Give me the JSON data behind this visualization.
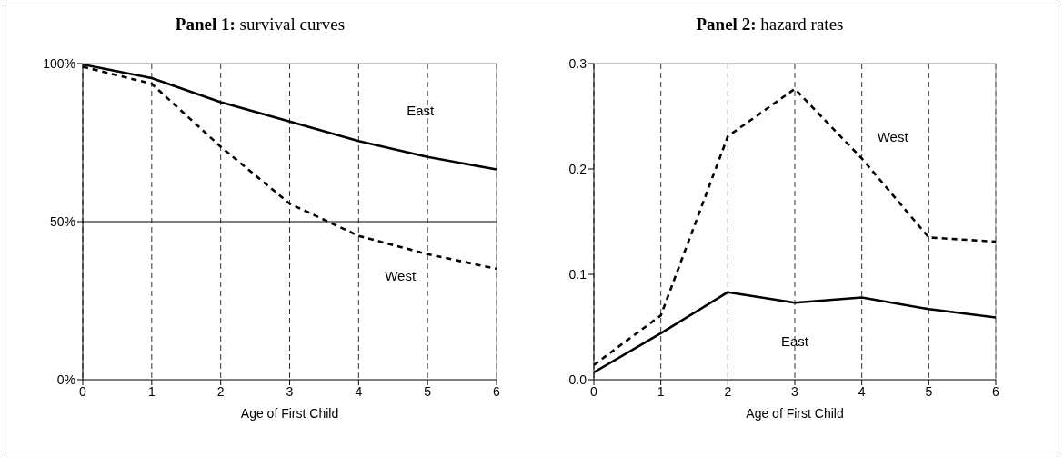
{
  "chart_data": [
    {
      "type": "line",
      "title": "Panel 1: survival curves",
      "xlabel": "Age of First Child",
      "x": [
        0,
        1,
        2,
        3,
        4,
        5,
        6
      ],
      "xlim": [
        0,
        6
      ],
      "xticks": [
        0,
        1,
        2,
        3,
        4,
        5,
        6
      ],
      "ylim": [
        0,
        100
      ],
      "yticks": [
        {
          "value": 0,
          "label": "0%"
        },
        {
          "value": 50,
          "label": "50%"
        },
        {
          "value": 100,
          "label": "100%"
        }
      ],
      "grid": "x",
      "ref_lines": [
        {
          "axis": "y",
          "value": 50,
          "color": "#000000",
          "line_style": "solid"
        }
      ],
      "legend": false,
      "marker": "none",
      "series": [
        {
          "name": "East",
          "color": "#000000",
          "line_style": "solid",
          "values": [
            99.7,
            95.4,
            87.8,
            81.7,
            75.5,
            70.5,
            66.5
          ]
        },
        {
          "name": "West",
          "color": "#000000",
          "line_style": "dashed",
          "values": [
            99,
            93.6,
            73.7,
            55.7,
            45.5,
            39.7,
            35.1
          ]
        }
      ]
    },
    {
      "type": "line",
      "title": "Panel 2: hazard rates",
      "xlabel": "Age of First Child",
      "x": [
        0,
        1,
        2,
        3,
        4,
        5,
        6
      ],
      "xlim": [
        0,
        6
      ],
      "xticks": [
        0,
        1,
        2,
        3,
        4,
        5,
        6
      ],
      "ylim": [
        0,
        0.3
      ],
      "yticks": [
        {
          "value": 0,
          "label": "0.0"
        },
        0.1,
        0.2,
        0.3
      ],
      "grid": "x",
      "legend": false,
      "marker": "none",
      "series": [
        {
          "name": "East",
          "color": "#000000",
          "line_style": "solid",
          "values": [
            0.007,
            0.044,
            0.083,
            0.073,
            0.078,
            0.067,
            0.059
          ]
        },
        {
          "name": "West",
          "color": "#000000",
          "line_style": "dashed",
          "values": [
            0.014,
            0.061,
            0.231,
            0.276,
            0.21,
            0.135,
            0.131
          ]
        }
      ]
    }
  ]
}
